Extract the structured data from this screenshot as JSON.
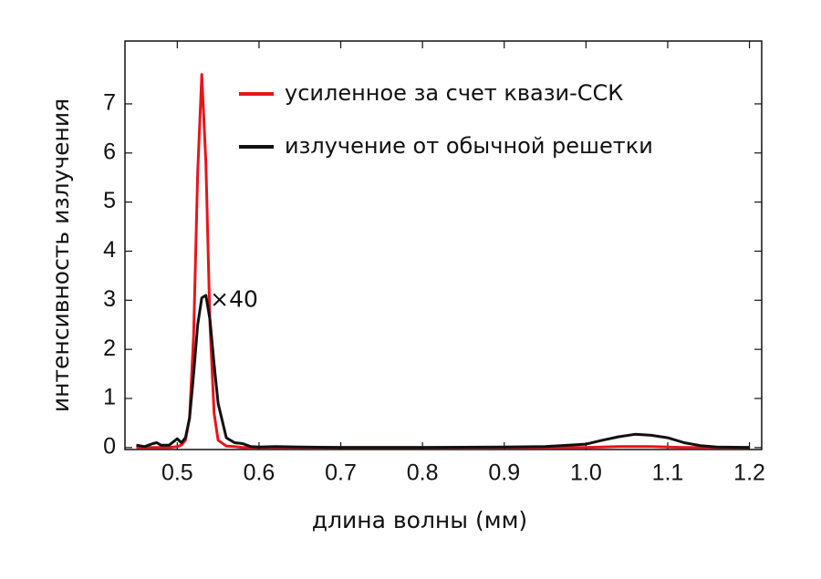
{
  "chart_data": {
    "type": "line",
    "xlabel": "длина волны (мм)",
    "ylabel": "интенсивность излучения",
    "annotation": "×40",
    "annotation_x": 0.54,
    "annotation_y": 3.0,
    "x": [
      0.45,
      0.46,
      0.47,
      0.475,
      0.48,
      0.49,
      0.5,
      0.505,
      0.51,
      0.515,
      0.52,
      0.525,
      0.53,
      0.535,
      0.54,
      0.545,
      0.55,
      0.56,
      0.57,
      0.58,
      0.59,
      0.6,
      0.62,
      0.65,
      0.7,
      0.8,
      0.9,
      0.95,
      1.0,
      1.02,
      1.04,
      1.06,
      1.08,
      1.1,
      1.12,
      1.14,
      1.16,
      1.2
    ],
    "series": [
      {
        "name": "усиленное за счет квази-ССК",
        "color": "#e8141b",
        "values": [
          0,
          0,
          0,
          0,
          0,
          0,
          0.02,
          0.05,
          0.15,
          0.6,
          2.3,
          5.6,
          7.6,
          5.8,
          2.5,
          0.7,
          0.15,
          0.03,
          0.02,
          0,
          0,
          0,
          0,
          0,
          0,
          0,
          0,
          0,
          0,
          0.01,
          0.02,
          0.02,
          0.02,
          0.01,
          0,
          0,
          0,
          0
        ]
      },
      {
        "name": "излучение от обычной решетки",
        "color": "#111111",
        "values": [
          0.05,
          0.02,
          0.08,
          0.1,
          0.05,
          0.05,
          0.18,
          0.1,
          0.2,
          0.6,
          1.5,
          2.5,
          3.05,
          3.1,
          2.6,
          1.7,
          0.9,
          0.2,
          0.1,
          0.08,
          0.02,
          0.01,
          0.02,
          0.01,
          0,
          0,
          0.01,
          0.02,
          0.07,
          0.15,
          0.22,
          0.27,
          0.25,
          0.2,
          0.1,
          0.04,
          0.01,
          0
        ]
      }
    ],
    "xlim": [
      0.436,
      1.215
    ],
    "ylim": [
      -0.04,
      8.28
    ],
    "xticks": [
      0.5,
      0.6,
      0.7,
      0.8,
      0.9,
      {
        "value": 1,
        "label": "1.0"
      },
      1.1,
      1.2
    ],
    "yticks": [
      0,
      1,
      2,
      3,
      4,
      5,
      6,
      7
    ],
    "legend": "upper right",
    "grid": false
  }
}
